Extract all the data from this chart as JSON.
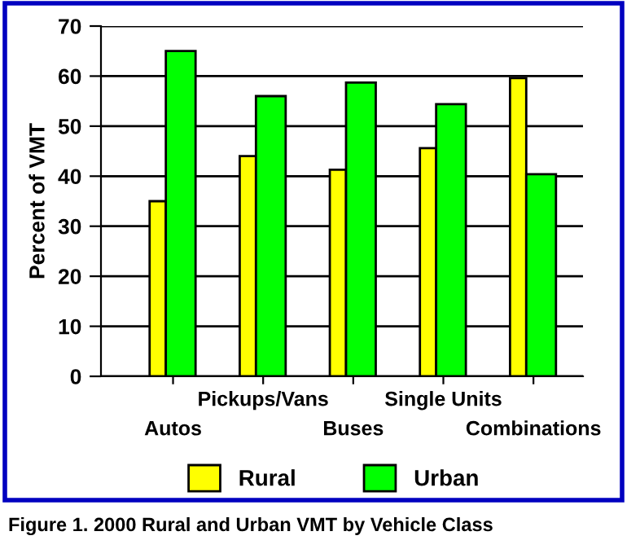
{
  "chart_data": {
    "type": "bar",
    "ylabel": "Percent of VMT",
    "categories": [
      "Autos",
      "Pickups/Vans",
      "Buses",
      "Single Units",
      "Combinations"
    ],
    "series": [
      {
        "name": "Rural",
        "color": "#ffff00",
        "values": [
          35,
          44,
          41.3,
          45.6,
          59.6
        ]
      },
      {
        "name": "Urban",
        "color": "#00ff00",
        "values": [
          65,
          56,
          58.7,
          54.4,
          40.4
        ]
      }
    ],
    "ylim": [
      0,
      70
    ],
    "yticks": [
      0,
      10,
      20,
      30,
      40,
      50,
      60,
      70
    ],
    "grid": "y",
    "legend": "bottom",
    "annotations": [
      "Figure 1. 2000 Rural and Urban VMT by Vehicle Class"
    ]
  }
}
